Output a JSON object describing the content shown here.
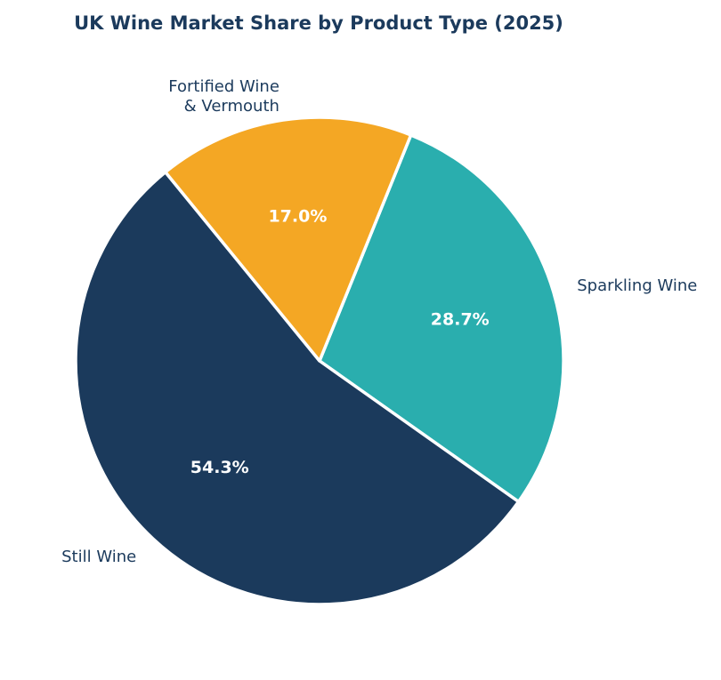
{
  "chart_data": {
    "type": "pie",
    "title": "UK Wine Market Share by Product Type (2025)",
    "slices": [
      {
        "label": "Sparkling Wine",
        "value": 28.7,
        "value_label": "28.7%",
        "color": "#2aaeae"
      },
      {
        "label": "Still Wine",
        "value": 54.3,
        "value_label": "54.3%",
        "color": "#1b3a5c"
      },
      {
        "label": "Fortified Wine\n& Vermouth",
        "value": 17.0,
        "value_label": "17.0%",
        "color": "#f4a724"
      }
    ],
    "start_angle_deg": 68,
    "direction": "clockwise",
    "text_color": "#1b3a5c"
  }
}
